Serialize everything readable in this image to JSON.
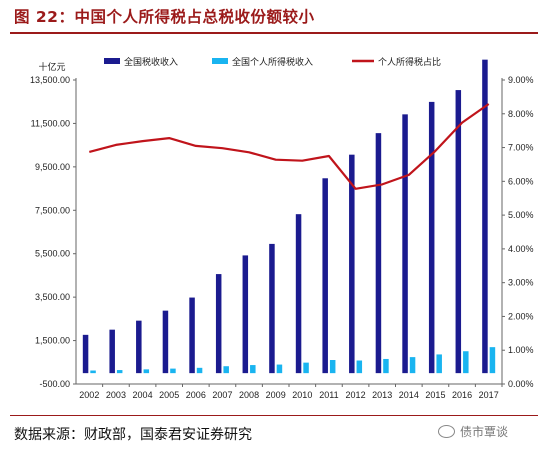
{
  "title": "图 22：中国个人所得税占总税收份额较小",
  "source": "数据来源：财政部，国泰君安证券研究",
  "watermark": "债市覃谈",
  "colors": {
    "total": "#1b1b8f",
    "personal": "#19b4f0",
    "share": "#c0141b",
    "title": "#9b1a1a"
  },
  "chart_data": {
    "type": "bar",
    "y_unit_label": "十亿元",
    "categories": [
      "2002",
      "2003",
      "2004",
      "2005",
      "2006",
      "2007",
      "2008",
      "2009",
      "2010",
      "2011",
      "2012",
      "2013",
      "2014",
      "2015",
      "2016",
      "2017"
    ],
    "series": [
      {
        "name": "全国税收收入",
        "type": "bar",
        "axis": "left",
        "values": [
          1764,
          2002,
          2417,
          2878,
          3481,
          4562,
          5422,
          5952,
          7321,
          8974,
          10061,
          11053,
          11918,
          12492,
          13036,
          14437
        ]
      },
      {
        "name": "全国个人所得税收入",
        "type": "bar",
        "axis": "left",
        "values": [
          121,
          142,
          174,
          209,
          245,
          319,
          372,
          395,
          484,
          605,
          582,
          653,
          738,
          862,
          1009,
          1197
        ]
      },
      {
        "name": "个人所得税占比",
        "type": "line",
        "axis": "right",
        "values": [
          6.87,
          7.08,
          7.19,
          7.28,
          7.05,
          6.98,
          6.86,
          6.64,
          6.61,
          6.75,
          5.78,
          5.91,
          6.19,
          6.9,
          7.74,
          8.29
        ]
      }
    ],
    "y_left": {
      "min": -500,
      "max": 13500,
      "ticks": [
        "-500.00",
        "1,500.00",
        "3,500.00",
        "5,500.00",
        "7,500.00",
        "9,500.00",
        "11,500.00",
        "13,500.00"
      ]
    },
    "y_right": {
      "min": 0,
      "max": 9,
      "ticks": [
        "0.00%",
        "1.00%",
        "2.00%",
        "3.00%",
        "4.00%",
        "5.00%",
        "6.00%",
        "7.00%",
        "8.00%",
        "9.00%"
      ]
    },
    "legend_position": "top",
    "grid": false
  }
}
